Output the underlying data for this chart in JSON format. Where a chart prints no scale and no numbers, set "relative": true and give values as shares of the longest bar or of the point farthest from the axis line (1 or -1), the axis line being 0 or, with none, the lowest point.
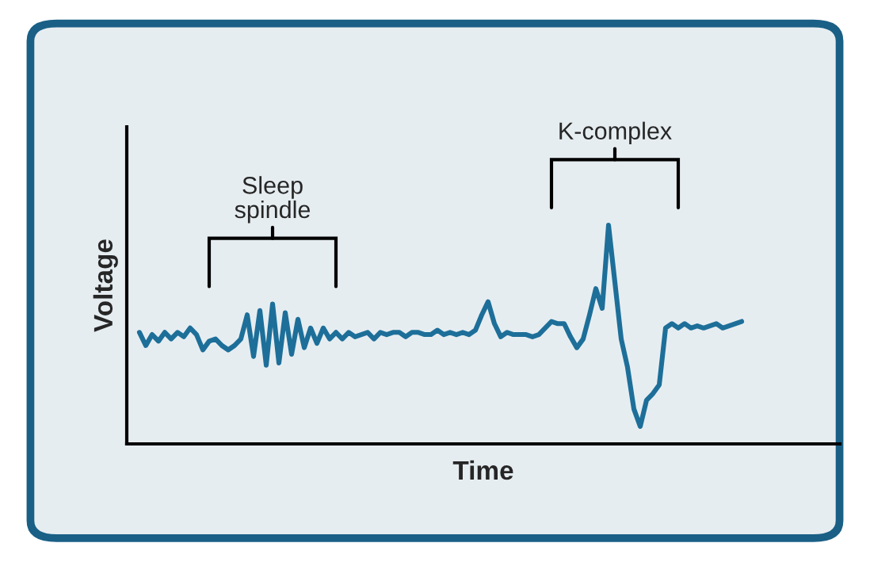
{
  "chart_data": {
    "type": "line",
    "relative": true,
    "xlabel": "Time",
    "ylabel": "Voltage",
    "annotations": [
      "Sleep spindle",
      "K-complex"
    ],
    "categories": [
      null,
      null,
      null,
      null,
      null,
      null,
      null,
      null,
      null,
      null,
      null,
      null,
      null,
      null,
      null,
      null,
      null,
      null,
      null,
      null,
      null,
      null,
      null,
      null,
      null,
      null,
      null,
      null,
      null,
      null,
      null,
      null,
      null,
      null,
      null,
      null,
      null,
      null,
      null,
      null,
      null,
      null,
      null,
      null,
      null,
      null,
      null,
      null,
      null,
      null,
      null,
      null,
      null,
      null,
      null,
      null,
      null,
      null,
      null,
      null,
      null,
      null,
      null,
      null,
      null,
      null,
      null,
      null,
      null,
      null,
      null,
      null,
      null,
      null,
      null,
      null,
      null,
      null,
      null,
      null,
      null,
      null,
      null,
      null,
      null,
      null,
      null,
      null,
      null,
      null,
      null,
      null,
      null,
      null,
      null,
      null
    ],
    "series": [
      {
        "color": "#1d6f99",
        "values": [
          0.51,
          0.45,
          0.5,
          0.47,
          0.51,
          0.48,
          0.51,
          0.49,
          0.53,
          0.5,
          0.43,
          0.47,
          0.48,
          0.45,
          0.43,
          0.45,
          0.48,
          0.59,
          0.4,
          0.61,
          0.36,
          0.64,
          0.37,
          0.6,
          0.41,
          0.57,
          0.44,
          0.53,
          0.46,
          0.53,
          0.48,
          0.51,
          0.48,
          0.51,
          0.49,
          0.5,
          0.51,
          0.48,
          0.51,
          0.5,
          0.51,
          0.51,
          0.49,
          0.51,
          0.51,
          0.5,
          0.5,
          0.52,
          0.5,
          0.51,
          0.5,
          0.51,
          0.5,
          0.52,
          0.59,
          0.65,
          0.55,
          0.49,
          0.51,
          0.5,
          0.5,
          0.5,
          0.49,
          0.5,
          0.53,
          0.56,
          0.55,
          0.55,
          0.49,
          0.44,
          0.48,
          0.59,
          0.71,
          0.62,
          1.0,
          0.74,
          0.48,
          0.35,
          0.16,
          0.08,
          0.2,
          0.23,
          0.27,
          0.53,
          0.55,
          0.53,
          0.55,
          0.53,
          0.54,
          0.53,
          0.54,
          0.55,
          0.53,
          0.54,
          0.55,
          0.56
        ]
      }
    ],
    "grid": false,
    "marker": "none",
    "line_style": "solid"
  }
}
